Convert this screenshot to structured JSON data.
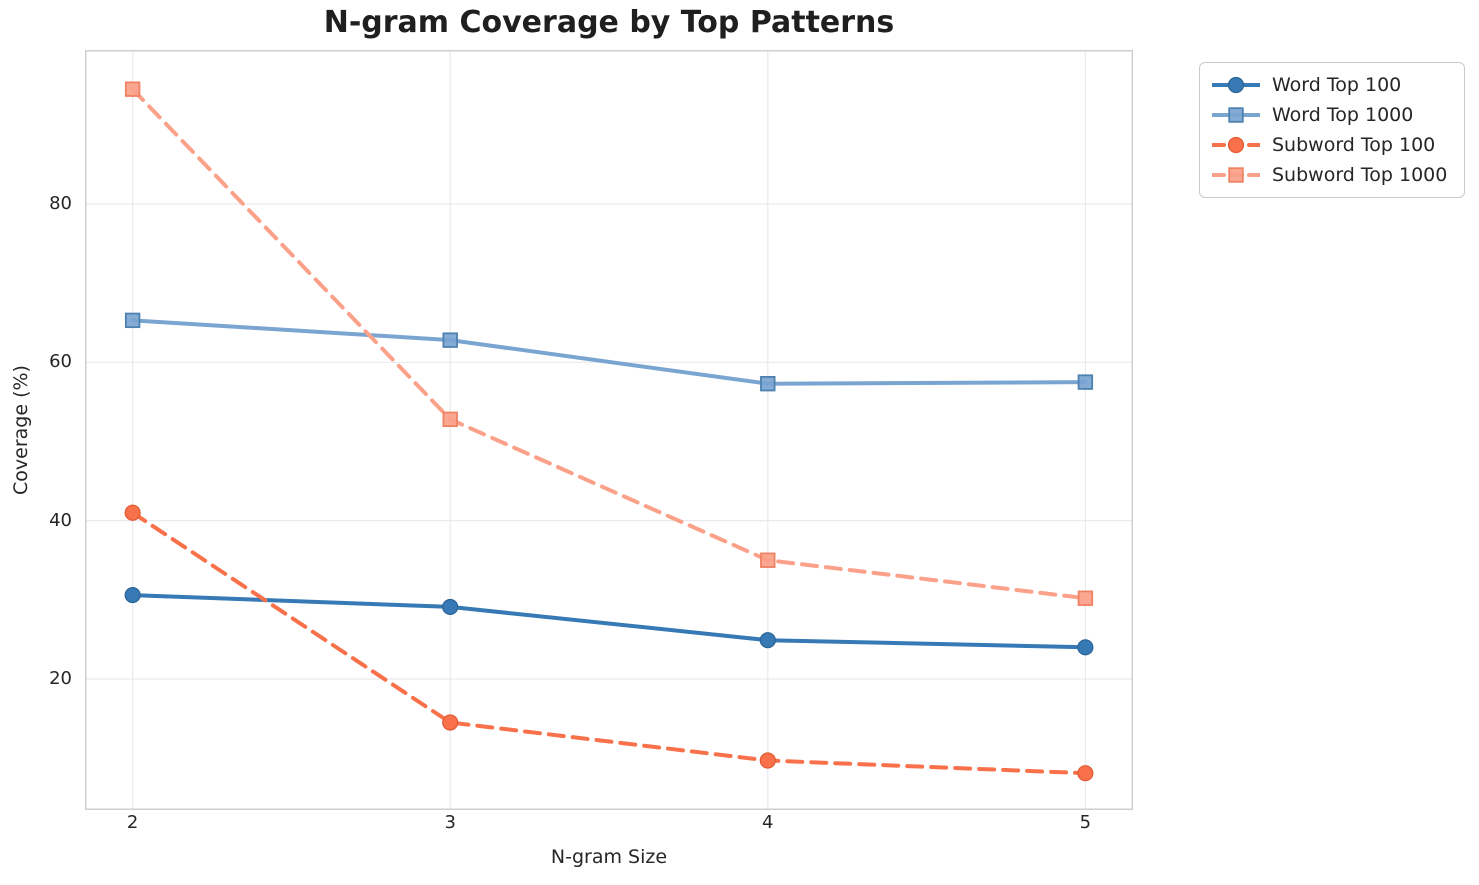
{
  "chart_data": {
    "type": "line",
    "title": "N-gram Coverage by Top Patterns",
    "xlabel": "N-gram Size",
    "ylabel": "Coverage (%)",
    "x": [
      2,
      3,
      4,
      5
    ],
    "xticks": [
      2,
      3,
      4,
      5
    ],
    "yticks": [
      20,
      40,
      60,
      80
    ],
    "xlim": [
      1.85,
      5.15
    ],
    "ylim": [
      3.45,
      99.45
    ],
    "grid": true,
    "legend_position": "outside upper right",
    "grid_color": "#e9e9ef",
    "spine_color": "#cfcfcf",
    "text_color": "#262626",
    "series": [
      {
        "name": "Word Top 100",
        "values": [
          30.6,
          29.1,
          24.9,
          24.0
        ],
        "color": "#3679b4",
        "edge_color": "#2c6397",
        "marker": "circle",
        "line_style": "solid"
      },
      {
        "name": "Word Top 1000",
        "values": [
          65.3,
          62.8,
          57.3,
          57.5
        ],
        "color": "#7aa5d1",
        "edge_color": "#4e81b0",
        "marker": "square",
        "line_style": "solid"
      },
      {
        "name": "Subword Top 100",
        "values": [
          41.0,
          14.5,
          9.7,
          8.1
        ],
        "color": "#f8714b",
        "edge_color": "#e25a33",
        "marker": "circle",
        "line_style": "dashed"
      },
      {
        "name": "Subword Top 1000",
        "values": [
          94.5,
          52.8,
          35.0,
          30.2
        ],
        "color": "#fba189",
        "edge_color": "#ee8263",
        "marker": "square",
        "line_style": "dashed"
      }
    ]
  }
}
